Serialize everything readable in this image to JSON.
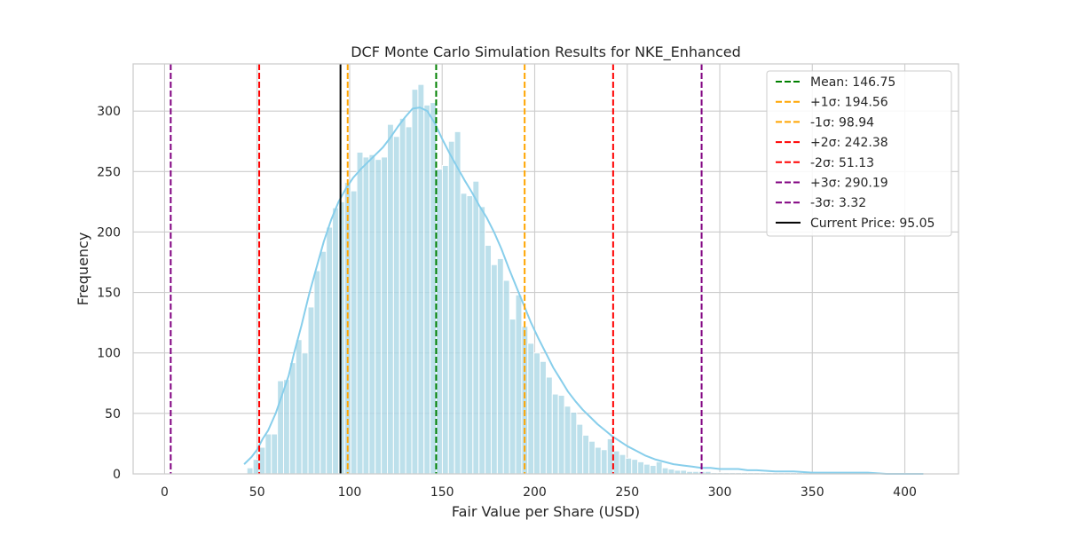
{
  "chart_data": {
    "type": "bar",
    "title": "DCF Monte Carlo Simulation Results for NKE_Enhanced",
    "xlabel": "Fair Value per Share (USD)",
    "ylabel": "Frequency",
    "xlim": [
      -17,
      429
    ],
    "ylim": [
      0,
      339
    ],
    "x_ticks": [
      0,
      50,
      100,
      150,
      200,
      250,
      300,
      350,
      400
    ],
    "y_ticks": [
      0,
      50,
      100,
      150,
      200,
      250,
      300
    ],
    "grid": true,
    "legend_position": "top-right",
    "histogram": {
      "bin_start": 44.5,
      "bin_width": 3.3,
      "color": "#add8e6",
      "counts": [
        5,
        12,
        22,
        33,
        33,
        77,
        78,
        92,
        111,
        100,
        138,
        168,
        184,
        204,
        220,
        225,
        241,
        234,
        266,
        262,
        264,
        260,
        262,
        289,
        279,
        294,
        287,
        318,
        322,
        305,
        307,
        252,
        255,
        275,
        283,
        232,
        230,
        242,
        221,
        189,
        173,
        178,
        160,
        128,
        148,
        122,
        108,
        100,
        93,
        80,
        66,
        65,
        56,
        51,
        41,
        32,
        27,
        22,
        20,
        29,
        19,
        16,
        13,
        12,
        10,
        8,
        7,
        10,
        5,
        4,
        3,
        3,
        2,
        2,
        2,
        2,
        1,
        1,
        1,
        1,
        1,
        1,
        1,
        1,
        1,
        1,
        1,
        1,
        1,
        1,
        1,
        1,
        1,
        1,
        1,
        1,
        0,
        0,
        0,
        1
      ]
    },
    "kde": {
      "color": "#87ceeb",
      "x": [
        43,
        47,
        50,
        53,
        56,
        60,
        63,
        67,
        70,
        74,
        78,
        82,
        86,
        90,
        94,
        98,
        102,
        106,
        110,
        114,
        118,
        122,
        126,
        130,
        134,
        138,
        142,
        146,
        150,
        154,
        158,
        162,
        166,
        170,
        174,
        178,
        182,
        186,
        190,
        194,
        198,
        202,
        206,
        210,
        214,
        218,
        222,
        226,
        230,
        234,
        238,
        242,
        246,
        250,
        255,
        260,
        265,
        270,
        275,
        280,
        285,
        290,
        295,
        300,
        305,
        310,
        315,
        320,
        330,
        340,
        350,
        360,
        370,
        380,
        390,
        400,
        410
      ],
      "y": [
        8,
        14,
        20,
        29,
        36,
        50,
        63,
        81,
        100,
        123,
        148,
        170,
        192,
        210,
        225,
        236,
        245,
        252,
        258,
        264,
        270,
        278,
        287,
        295,
        302,
        303,
        300,
        290,
        277,
        265,
        254,
        243,
        233,
        222,
        212,
        200,
        186,
        170,
        155,
        140,
        125,
        112,
        100,
        88,
        78,
        68,
        60,
        53,
        47,
        41,
        36,
        31,
        27,
        23,
        19,
        15,
        12,
        10,
        8,
        7,
        6,
        5,
        5,
        4,
        4,
        4,
        3,
        3,
        2,
        2,
        1,
        1,
        1,
        1,
        0,
        0,
        0
      ]
    },
    "reference_lines": [
      {
        "label": "Mean: 146.75",
        "x": 146.75,
        "color": "#008000",
        "style": "dashed"
      },
      {
        "label": "+1σ: 194.56",
        "x": 194.56,
        "color": "#ffa500",
        "style": "dashed"
      },
      {
        "label": "-1σ: 98.94",
        "x": 98.94,
        "color": "#ffa500",
        "style": "dashed"
      },
      {
        "label": "+2σ: 242.38",
        "x": 242.38,
        "color": "#ff0000",
        "style": "dashed"
      },
      {
        "label": "-2σ: 51.13",
        "x": 51.13,
        "color": "#ff0000",
        "style": "dashed"
      },
      {
        "label": "+3σ: 290.19",
        "x": 290.19,
        "color": "#800080",
        "style": "dashed"
      },
      {
        "label": "-3σ: 3.32",
        "x": 3.32,
        "color": "#800080",
        "style": "dashed"
      },
      {
        "label": "Current Price: 95.05",
        "x": 95.05,
        "color": "#000000",
        "style": "solid"
      }
    ]
  }
}
